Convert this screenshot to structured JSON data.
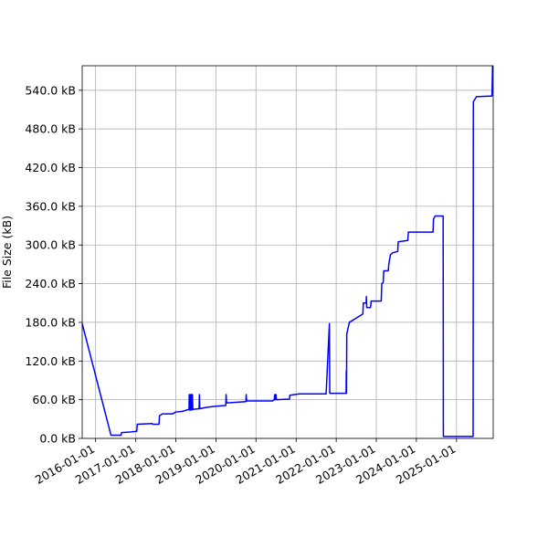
{
  "chart_data": {
    "type": "line",
    "title": "",
    "xlabel": "",
    "ylabel": "File Size (kB)",
    "grid": true,
    "line_color": "#0000ff",
    "x_axis": {
      "type": "date",
      "range": [
        "2015-09-01",
        "2025-12-01"
      ],
      "ticks": [
        "2016-01-01",
        "2017-01-01",
        "2018-01-01",
        "2019-01-01",
        "2020-01-01",
        "2021-01-01",
        "2022-01-01",
        "2023-01-01",
        "2024-01-01",
        "2025-01-01"
      ]
    },
    "y_axis": {
      "range": [
        0,
        578
      ],
      "ticks": [
        0,
        60,
        120,
        180,
        240,
        300,
        360,
        420,
        480,
        540
      ],
      "tick_labels": [
        "0.0 kB",
        "60.0 kB",
        "120.0 kB",
        "180.0 kB",
        "240.0 kB",
        "300.0 kB",
        "360.0 kB",
        "420.0 kB",
        "480.0 kB",
        "540.0 kB"
      ]
    },
    "series": [
      {
        "points": [
          [
            "2015-09-01",
            178
          ],
          [
            "2016-05-20",
            5
          ],
          [
            "2016-08-20",
            5
          ],
          [
            "2016-08-25",
            9
          ],
          [
            "2016-11-15",
            10
          ],
          [
            "2017-01-10",
            11
          ],
          [
            "2017-01-15",
            22
          ],
          [
            "2017-06-01",
            23
          ],
          [
            "2017-06-05",
            22
          ],
          [
            "2017-08-01",
            22
          ],
          [
            "2017-08-05",
            35
          ],
          [
            "2017-09-01",
            38
          ],
          [
            "2017-12-01",
            38
          ],
          [
            "2018-01-01",
            41
          ],
          [
            "2018-03-01",
            42
          ],
          [
            "2018-05-01",
            45
          ],
          [
            "2018-05-03",
            68
          ],
          [
            "2018-05-06",
            44
          ],
          [
            "2018-05-12",
            68
          ],
          [
            "2018-05-16",
            44
          ],
          [
            "2018-05-22",
            68
          ],
          [
            "2018-05-26",
            44
          ],
          [
            "2018-06-01",
            68
          ],
          [
            "2018-06-05",
            45
          ],
          [
            "2018-08-01",
            46
          ],
          [
            "2018-08-04",
            68
          ],
          [
            "2018-08-07",
            46
          ],
          [
            "2018-10-01",
            48
          ],
          [
            "2019-01-01",
            50
          ],
          [
            "2019-04-01",
            51
          ],
          [
            "2019-04-04",
            68
          ],
          [
            "2019-04-08",
            55
          ],
          [
            "2019-10-01",
            57
          ],
          [
            "2019-10-04",
            68
          ],
          [
            "2019-10-08",
            58
          ],
          [
            "2020-06-01",
            58
          ],
          [
            "2020-06-15",
            60
          ],
          [
            "2020-06-20",
            68
          ],
          [
            "2020-06-24",
            60
          ],
          [
            "2020-07-01",
            68
          ],
          [
            "2020-07-05",
            60
          ],
          [
            "2020-11-01",
            61
          ],
          [
            "2020-11-05",
            67
          ],
          [
            "2021-02-01",
            69
          ],
          [
            "2021-06-01",
            69
          ],
          [
            "2021-10-01",
            69
          ],
          [
            "2021-10-31",
            178
          ],
          [
            "2021-11-03",
            70
          ],
          [
            "2022-04-01",
            70
          ],
          [
            "2022-04-03",
            105
          ],
          [
            "2022-04-05",
            70
          ],
          [
            "2022-04-07",
            162
          ],
          [
            "2022-04-20",
            172
          ],
          [
            "2022-05-01",
            180
          ],
          [
            "2022-09-01",
            193
          ],
          [
            "2022-09-05",
            210
          ],
          [
            "2022-10-01",
            210
          ],
          [
            "2022-10-03",
            220
          ],
          [
            "2022-10-06",
            203
          ],
          [
            "2022-11-10",
            203
          ],
          [
            "2022-11-15",
            213
          ],
          [
            "2023-02-15",
            213
          ],
          [
            "2023-02-20",
            240
          ],
          [
            "2023-03-05",
            242
          ],
          [
            "2023-03-10",
            260
          ],
          [
            "2023-04-20",
            260
          ],
          [
            "2023-04-25",
            270
          ],
          [
            "2023-05-10",
            285
          ],
          [
            "2023-06-01",
            288
          ],
          [
            "2023-07-15",
            290
          ],
          [
            "2023-07-20",
            305
          ],
          [
            "2023-10-15",
            307
          ],
          [
            "2023-10-20",
            320
          ],
          [
            "2024-06-01",
            320
          ],
          [
            "2024-06-05",
            340
          ],
          [
            "2024-06-20",
            345
          ],
          [
            "2024-09-01",
            345
          ],
          [
            "2024-09-03",
            3
          ],
          [
            "2025-06-01",
            3
          ],
          [
            "2025-06-03",
            522
          ],
          [
            "2025-07-01",
            530
          ],
          [
            "2025-11-20",
            531
          ],
          [
            "2025-11-25",
            578
          ]
        ]
      }
    ]
  }
}
